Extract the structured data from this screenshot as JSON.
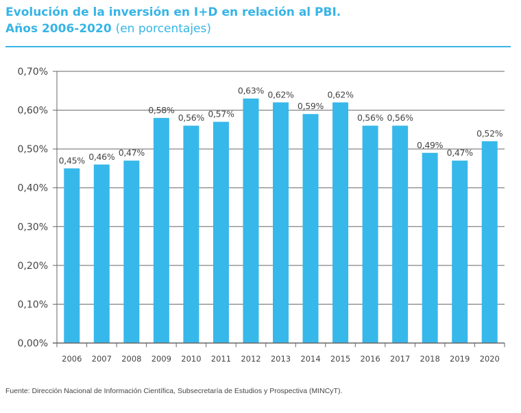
{
  "header": {
    "title_line1": "Evolución de la inversión en I+D en relación al PBI.",
    "title_line2_bold": "Años 2006-2020",
    "title_line2_light": "(en porcentajes)"
  },
  "footer": {
    "source": "Fuente: Dirección Nacional de Información Científica, Subsecretaría de Estudios y Prospectiva (MINCyT)."
  },
  "colors": {
    "bar": "#37b8ea",
    "accent": "#37b4e6",
    "grid": "#666666",
    "text": "#444444"
  },
  "chart_data": {
    "type": "bar",
    "title": "Evolución de la inversión en I+D en relación al PBI. Años 2006-2020 (en porcentajes)",
    "xlabel": "",
    "ylabel": "",
    "categories": [
      "2006",
      "2007",
      "2008",
      "2009",
      "2010",
      "2011",
      "2012",
      "2013",
      "2014",
      "2015",
      "2016",
      "2017",
      "2018",
      "2019",
      "2020"
    ],
    "values": [
      0.45,
      0.46,
      0.47,
      0.58,
      0.56,
      0.57,
      0.63,
      0.62,
      0.59,
      0.62,
      0.56,
      0.56,
      0.49,
      0.47,
      0.52
    ],
    "data_labels": [
      "0,45%",
      "0,46%",
      "0,47%",
      "0,58%",
      "0,56%",
      "0,57%",
      "0,63%",
      "0,62%",
      "0,59%",
      "0,62%",
      "0,56%",
      "0,56%",
      "0,49%",
      "0,47%",
      "0,52%"
    ],
    "ylim": [
      0,
      0.7
    ],
    "yticks": [
      0,
      0.1,
      0.2,
      0.3,
      0.4,
      0.5,
      0.6,
      0.7
    ],
    "ytick_labels": [
      "0,00%",
      "0,10%",
      "0,20%",
      "0,30%",
      "0,40%",
      "0,50%",
      "0,60%",
      "0,70%"
    ],
    "grid": true,
    "legend": "none"
  }
}
